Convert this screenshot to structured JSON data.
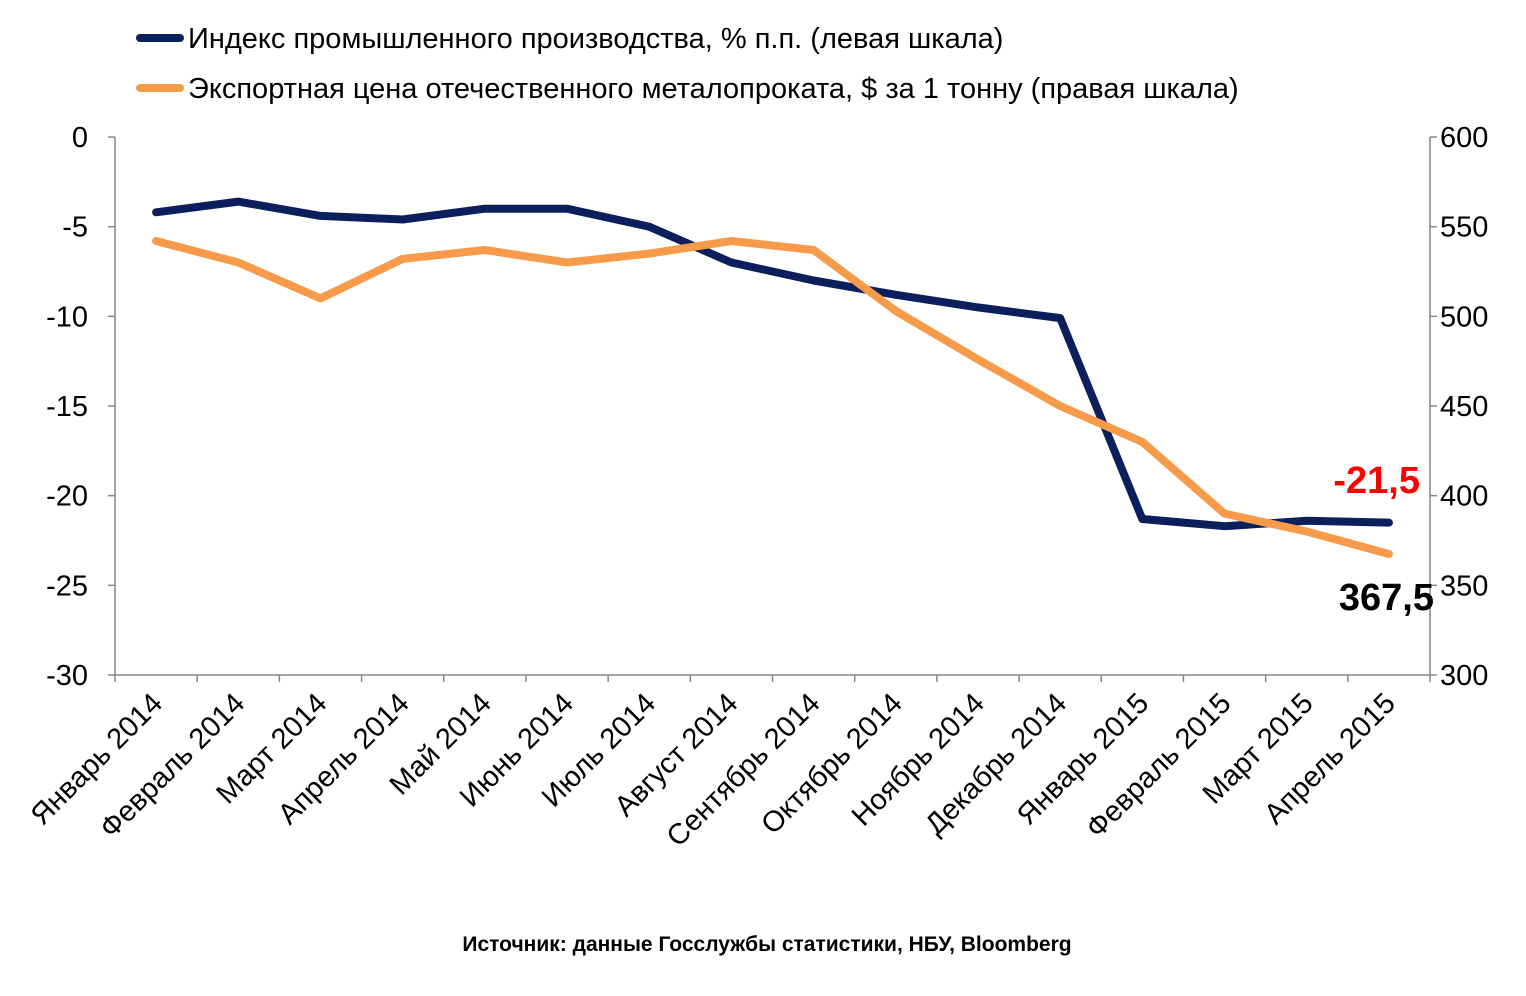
{
  "chart_data": {
    "type": "line",
    "categories": [
      "Январь 2014",
      "Февраль 2014",
      "Март 2014",
      "Апрель 2014",
      "Май 2014",
      "Июнь 2014",
      "Июль 2014",
      "Август 2014",
      "Сентябрь 2014",
      "Октябрь 2014",
      "Ноябрь 2014",
      "Декабрь 2014",
      "Январь 2015",
      "Февраль 2015",
      "Март 2015",
      "Апрель 2015"
    ],
    "series": [
      {
        "name": "Индекс промышленного производства, % п.п. (левая шкала)",
        "axis": "left",
        "color": "#0b1f5c",
        "values": [
          -4.2,
          -3.6,
          -4.4,
          -4.6,
          -4.0,
          -4.0,
          -5.0,
          -7.0,
          -8.0,
          -8.8,
          -9.5,
          -10.1,
          -21.3,
          -21.7,
          -21.4,
          -21.5
        ]
      },
      {
        "name": "Экспортная цена отечественного металопроката, $ за 1 тонну (правая шкала)",
        "axis": "right",
        "color": "#f79a4a",
        "values": [
          542,
          530,
          510,
          532,
          537,
          530,
          535,
          542,
          537,
          503,
          476,
          450,
          430,
          390,
          380,
          367.5
        ]
      }
    ],
    "left_axis": {
      "ylim": [
        -30,
        0
      ],
      "ticks": [
        "0",
        "-5",
        "-10",
        "-15",
        "-20",
        "-25",
        "-30"
      ]
    },
    "right_axis": {
      "ylim": [
        300,
        600
      ],
      "ticks": [
        "600",
        "550",
        "500",
        "450",
        "400",
        "350",
        "300"
      ]
    },
    "annotations": [
      {
        "text": "-21,5",
        "color": "#ff0000"
      },
      {
        "text": "367,5",
        "color": "#000000"
      }
    ],
    "legend_placement": "top",
    "grid": false,
    "source": "Источник: данные Госслужбы статистики, НБУ, Bloomberg"
  }
}
